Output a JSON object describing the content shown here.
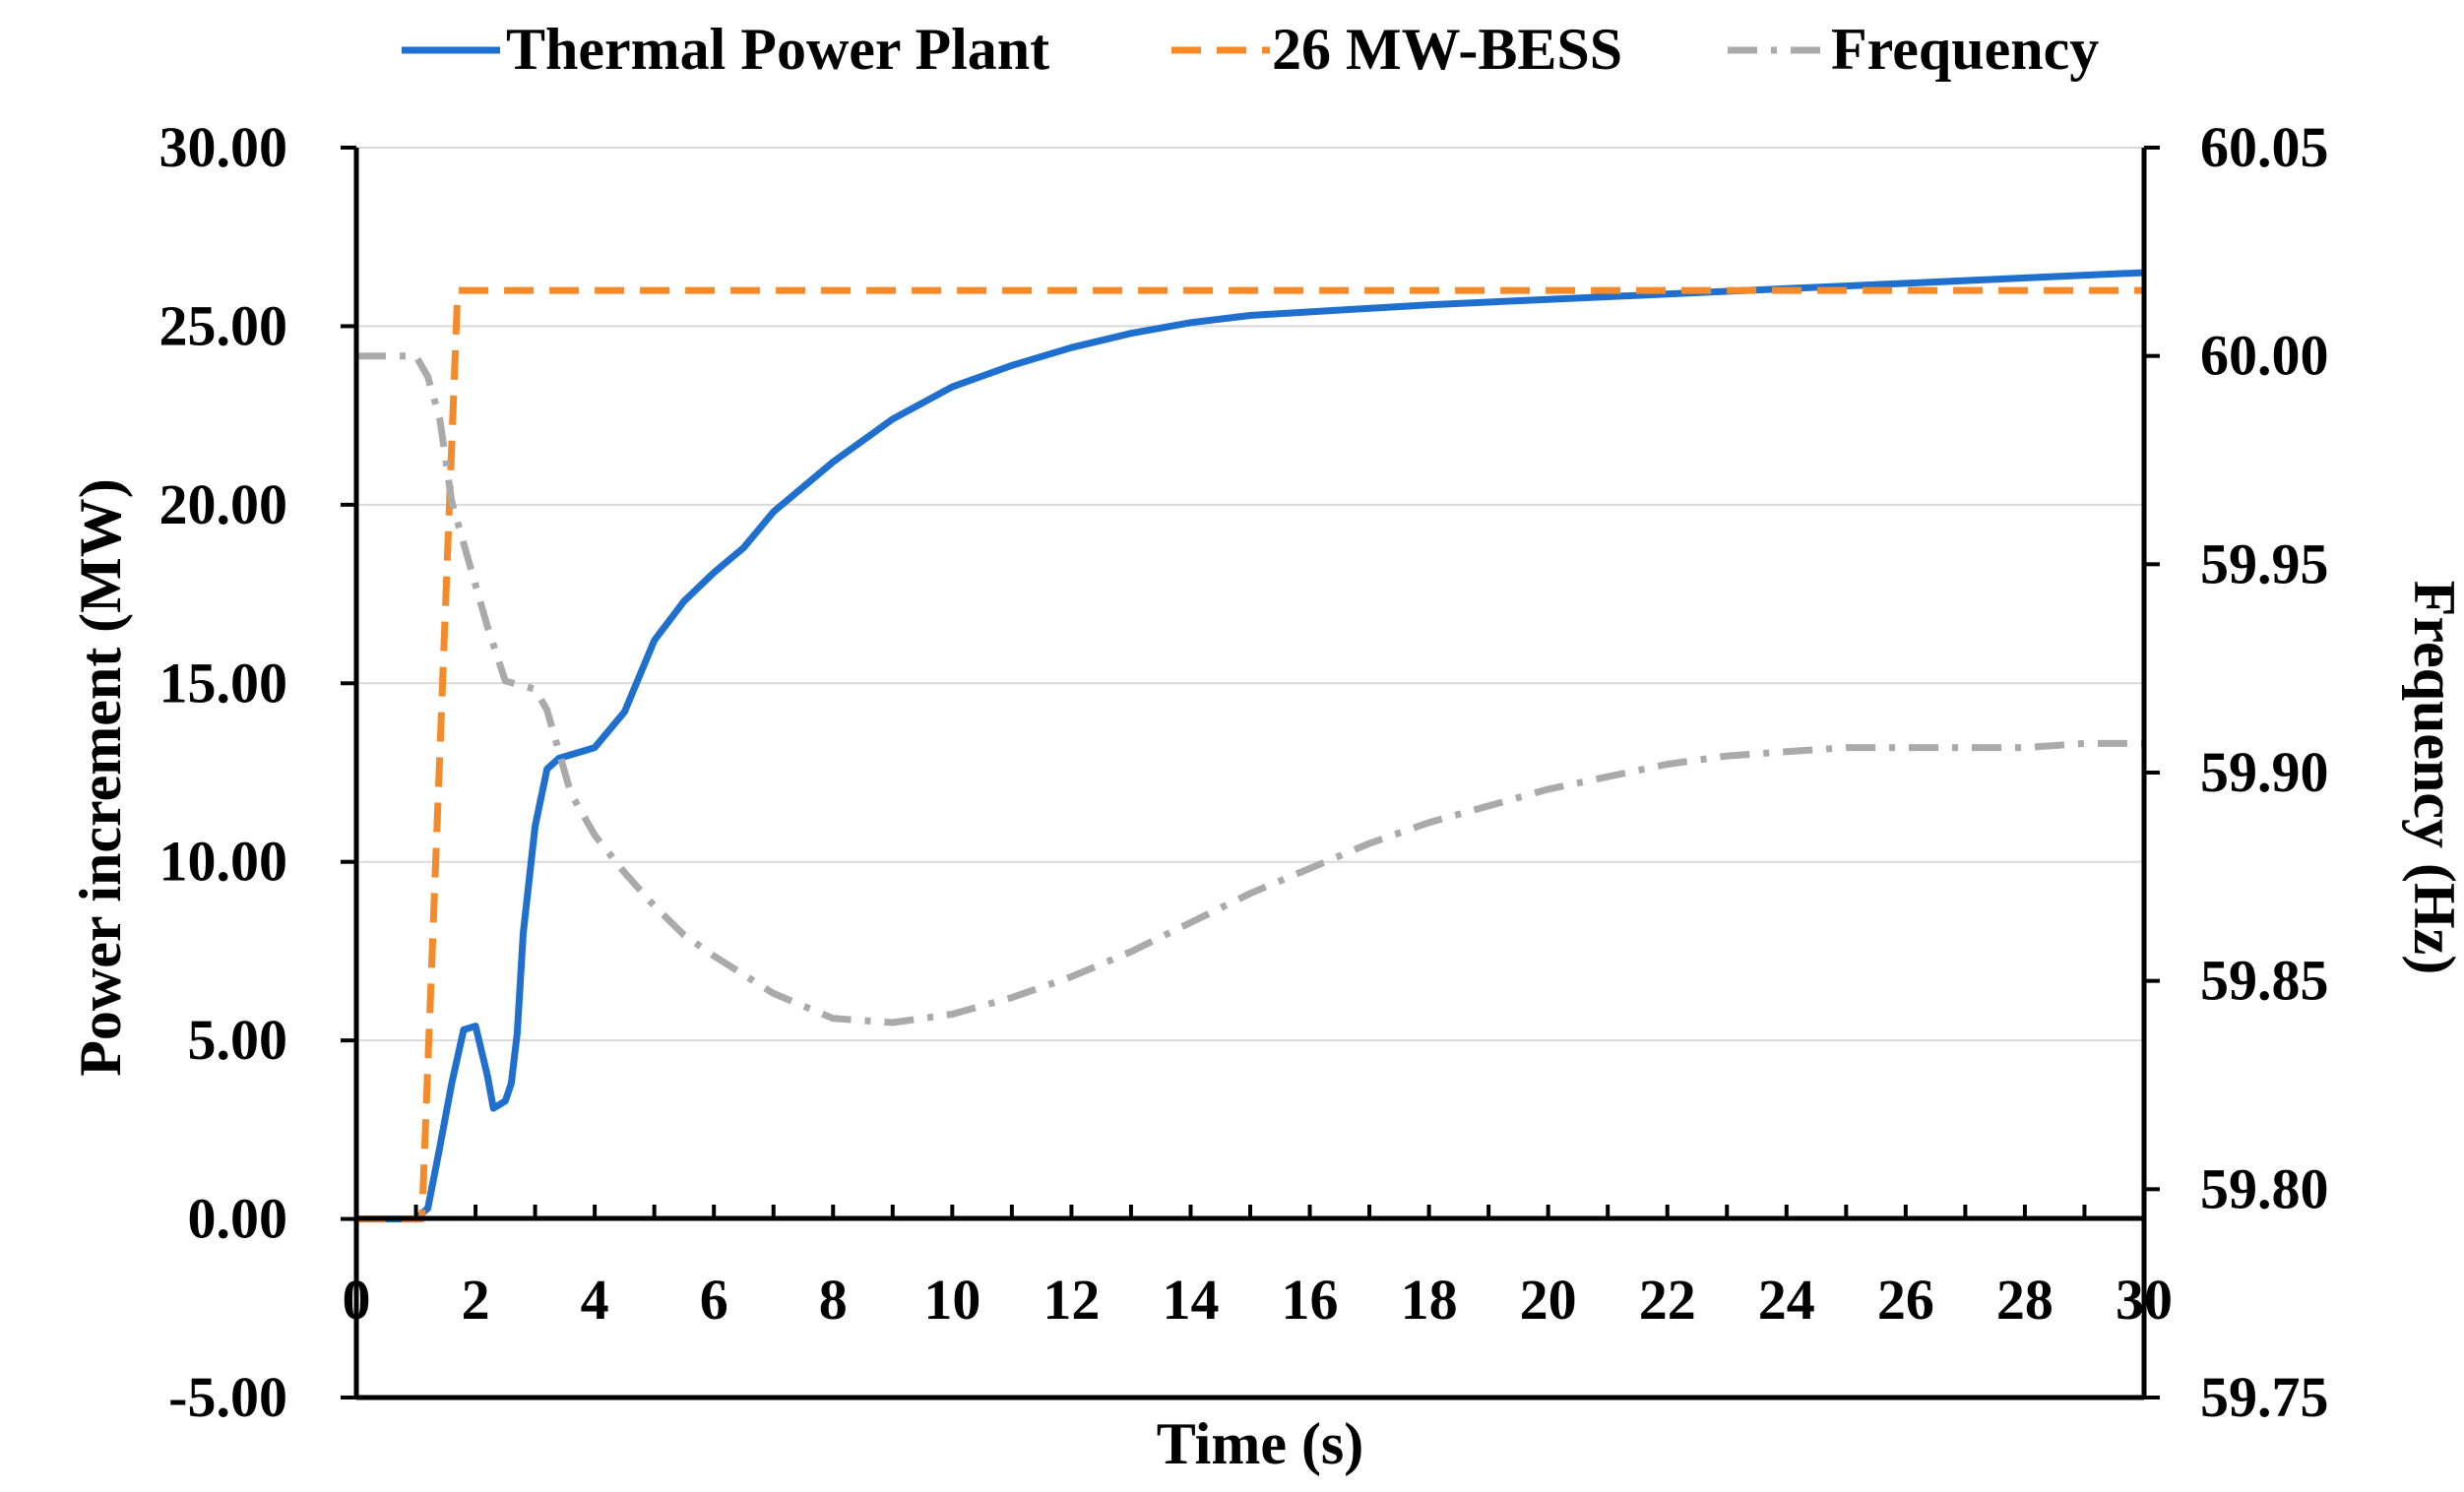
{
  "chart_data": {
    "type": "line",
    "title": "",
    "xlabel": "Time (s)",
    "ylabel": "Power increment (MW)",
    "y2label": "Frequency (Hz)",
    "xlim": [
      0,
      30
    ],
    "ylim": [
      -5,
      30
    ],
    "y2lim": [
      59.75,
      60.05
    ],
    "x_ticks": [
      0,
      2,
      4,
      6,
      8,
      10,
      12,
      14,
      16,
      18,
      20,
      22,
      24,
      26,
      28,
      30
    ],
    "x_tick_labels": [
      "0",
      "2",
      "4",
      "6",
      "8",
      "10",
      "12",
      "14",
      "16",
      "18",
      "20",
      "22",
      "24",
      "26",
      "28",
      "30"
    ],
    "y_ticks": [
      -5,
      0,
      5,
      10,
      15,
      20,
      25,
      30
    ],
    "y_tick_labels": [
      "-5.00",
      "0.00",
      "5.00",
      "10.00",
      "15.00",
      "20.00",
      "25.00",
      "30.00"
    ],
    "y2_ticks": [
      59.75,
      59.8,
      59.85,
      59.9,
      59.95,
      60.0,
      60.05
    ],
    "y2_tick_labels": [
      "59.75",
      "59.80",
      "59.85",
      "59.90",
      "59.95",
      "60.00",
      "60.05"
    ],
    "grid": true,
    "legend_position": "top",
    "series": [
      {
        "name": "Thermal Power Plant",
        "axis": "left",
        "color": "#1f6fcf",
        "style": "solid",
        "x": [
          0,
          1.0,
          1.2,
          1.4,
          1.6,
          1.8,
          2.0,
          2.2,
          2.3,
          2.5,
          2.6,
          2.7,
          2.8,
          3.0,
          3.2,
          3.4,
          3.6,
          4.0,
          4.5,
          5.0,
          5.5,
          6.0,
          6.5,
          7.0,
          8.0,
          9.0,
          10.0,
          11.0,
          12.0,
          13.0,
          14.0,
          15.0,
          16.0,
          18.0,
          20.0,
          22.0,
          24.0,
          26.0,
          28.0,
          30.0
        ],
        "values": [
          0,
          0,
          0.3,
          2.0,
          3.8,
          5.3,
          5.4,
          4.0,
          3.1,
          3.3,
          3.8,
          5.2,
          8.0,
          11.0,
          12.6,
          12.9,
          13.0,
          13.2,
          14.2,
          16.2,
          17.3,
          18.1,
          18.8,
          19.8,
          21.2,
          22.4,
          23.3,
          23.9,
          24.4,
          24.8,
          25.1,
          25.3,
          25.4,
          25.6,
          25.75,
          25.9,
          26.05,
          26.2,
          26.35,
          26.5
        ]
      },
      {
        "name": "26 MW-BESS",
        "axis": "left",
        "color": "#f58a2a",
        "style": "dashed",
        "x": [
          0,
          1.1,
          1.7,
          30
        ],
        "values": [
          0,
          0,
          26,
          26
        ]
      },
      {
        "name": "Frequency",
        "axis": "right",
        "color": "#aaaaaa",
        "style": "dashdot",
        "x": [
          0,
          1.0,
          1.2,
          1.4,
          1.6,
          1.8,
          2.0,
          2.2,
          2.5,
          3.0,
          3.2,
          3.4,
          3.6,
          4.0,
          4.5,
          5.0,
          5.5,
          6.0,
          7.0,
          8.0,
          9.0,
          10.0,
          11.0,
          12.0,
          13.0,
          14.0,
          15.0,
          16.0,
          17.0,
          18.0,
          19.0,
          20.0,
          21.0,
          22.0,
          23.0,
          24.0,
          25.0,
          26.0,
          27.0,
          28.0,
          29.0,
          30.0
        ],
        "values": [
          60.0,
          60.0,
          59.995,
          59.985,
          59.965,
          59.955,
          59.945,
          59.935,
          59.922,
          59.92,
          59.915,
          59.905,
          59.895,
          59.885,
          59.876,
          59.868,
          59.861,
          59.856,
          59.847,
          59.841,
          59.84,
          59.842,
          59.846,
          59.851,
          59.857,
          59.864,
          59.871,
          59.877,
          59.883,
          59.888,
          59.892,
          59.896,
          59.899,
          59.902,
          59.904,
          59.905,
          59.906,
          59.906,
          59.906,
          59.906,
          59.907,
          59.907
        ]
      }
    ]
  }
}
